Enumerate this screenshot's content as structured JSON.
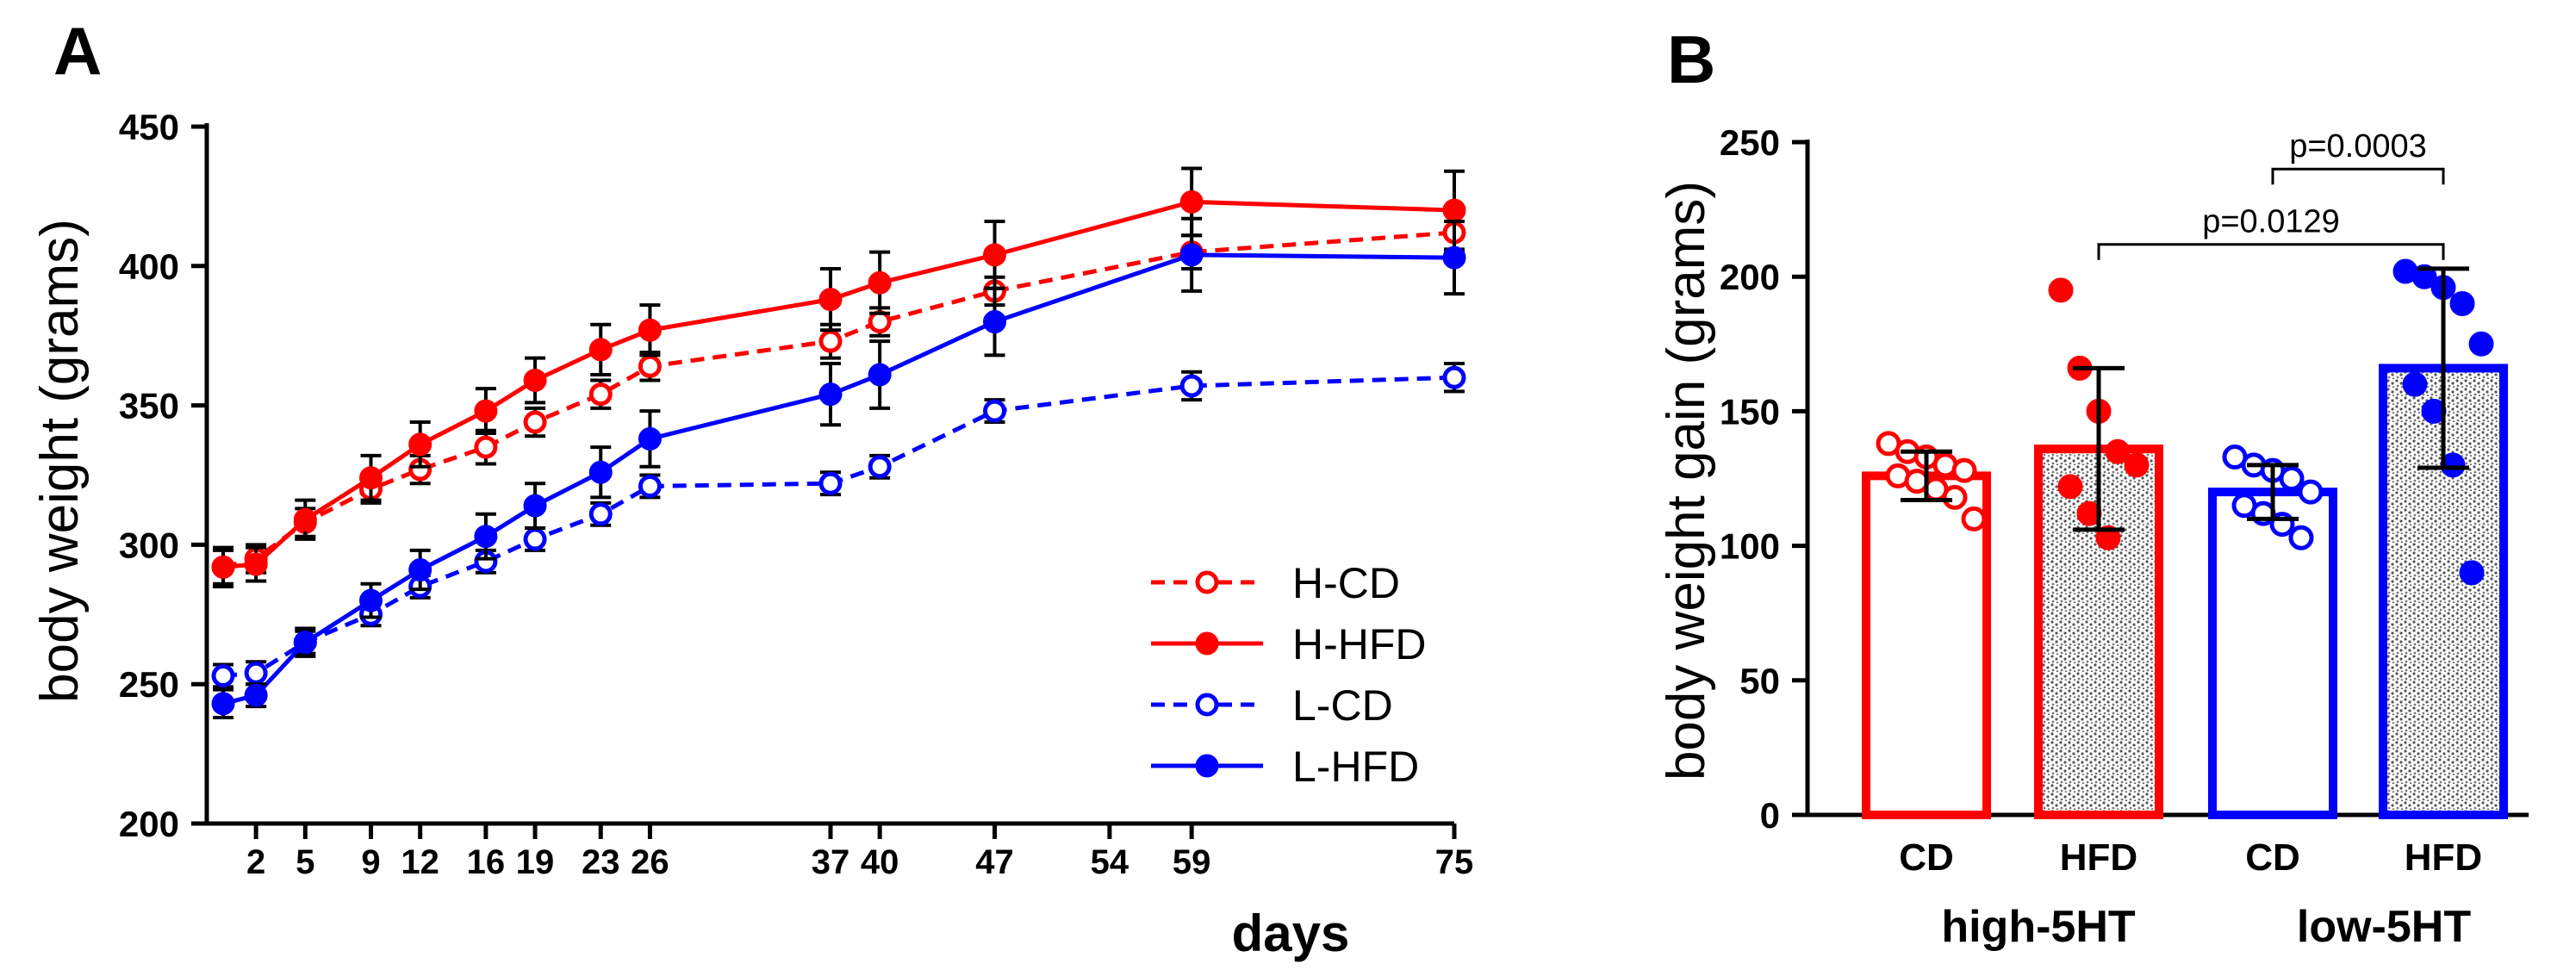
{
  "chart_data": [
    {
      "panel": "A",
      "type": "line",
      "panel_label": "A",
      "xlabel": "days",
      "ylabel": "body weight (grams)",
      "xlim": [
        -1,
        75
      ],
      "ylim": [
        200,
        450
      ],
      "xticks": [
        2,
        5,
        9,
        12,
        16,
        19,
        23,
        26,
        37,
        40,
        47,
        54,
        59,
        75
      ],
      "yticks": [
        200,
        250,
        300,
        350,
        400,
        450
      ],
      "legend_position": "bottom-right",
      "series": [
        {
          "name": "H-CD",
          "color": "#ff0000",
          "dashed": true,
          "filled": false,
          "x": [
            0,
            2,
            5,
            9,
            12,
            16,
            19,
            23,
            26,
            37,
            40,
            47,
            59,
            75
          ],
          "y": [
            292,
            295,
            308,
            320,
            327,
            335,
            344,
            354,
            364,
            373,
            380,
            391,
            405,
            412
          ],
          "err": [
            6,
            5,
            5,
            5,
            5,
            6,
            5,
            5,
            5,
            6,
            5,
            5,
            6,
            7
          ]
        },
        {
          "name": "H-HFD",
          "color": "#ff0000",
          "dashed": false,
          "filled": true,
          "x": [
            0,
            2,
            5,
            9,
            12,
            16,
            19,
            23,
            26,
            37,
            40,
            47,
            59,
            75
          ],
          "y": [
            292,
            293,
            309,
            324,
            336,
            348,
            359,
            370,
            377,
            388,
            394,
            404,
            423,
            420
          ],
          "err": [
            7,
            6,
            7,
            8,
            8,
            8,
            8,
            9,
            9,
            11,
            11,
            12,
            12,
            14
          ]
        },
        {
          "name": "L-CD",
          "color": "#0000ff",
          "dashed": true,
          "filled": false,
          "x": [
            0,
            2,
            5,
            9,
            12,
            16,
            19,
            23,
            26,
            37,
            40,
            47,
            59,
            75
          ],
          "y": [
            253,
            254,
            265,
            275,
            285,
            294,
            302,
            311,
            321,
            322,
            328,
            348,
            357,
            360
          ],
          "err": [
            4,
            4,
            4,
            4,
            4,
            4,
            4,
            4,
            4,
            4,
            4,
            4,
            5,
            5
          ]
        },
        {
          "name": "L-HFD",
          "color": "#0000ff",
          "dashed": false,
          "filled": true,
          "x": [
            0,
            2,
            5,
            9,
            12,
            16,
            19,
            23,
            26,
            37,
            40,
            47,
            59,
            75
          ],
          "y": [
            243,
            246,
            265,
            280,
            291,
            303,
            314,
            326,
            338,
            354,
            361,
            380,
            404,
            403
          ],
          "err": [
            5,
            4,
            5,
            6,
            7,
            8,
            8,
            9,
            10,
            11,
            12,
            12,
            13,
            13
          ]
        }
      ]
    },
    {
      "panel": "B",
      "type": "bar",
      "panel_label": "B",
      "ylabel": "body weight gain (grams)",
      "ylim": [
        0,
        250
      ],
      "yticks": [
        0,
        50,
        100,
        150,
        200,
        250
      ],
      "categories": [
        "CD",
        "HFD",
        "CD",
        "HFD"
      ],
      "groups": [
        "high-5HT",
        "low-5HT"
      ],
      "bars": [
        {
          "category": "CD",
          "group": "high-5HT",
          "color": "#ff0000",
          "patterned": false,
          "filled_points": false,
          "mean": 126,
          "sd": 9,
          "points": [
            138,
            135,
            133,
            130,
            128,
            126,
            124,
            121,
            118,
            110
          ]
        },
        {
          "category": "HFD",
          "group": "high-5HT",
          "color": "#ff0000",
          "patterned": true,
          "filled_points": true,
          "mean": 136,
          "sd": 30,
          "points": [
            195,
            166,
            150,
            135,
            130,
            122,
            112,
            103
          ]
        },
        {
          "category": "CD",
          "group": "low-5HT",
          "color": "#0000ff",
          "patterned": false,
          "filled_points": false,
          "mean": 120,
          "sd": 10,
          "points": [
            133,
            130,
            128,
            125,
            120,
            115,
            112,
            108,
            103
          ]
        },
        {
          "category": "HFD",
          "group": "low-5HT",
          "color": "#0000ff",
          "patterned": true,
          "filled_points": true,
          "mean": 166,
          "sd": 37,
          "points": [
            202,
            200,
            196,
            190,
            175,
            160,
            150,
            130,
            90
          ]
        }
      ],
      "annotations": [
        {
          "text": "p=0.0129",
          "from_bar": 1,
          "to_bar": 3,
          "y": 212
        },
        {
          "text": "p=0.0003",
          "from_bar": 2,
          "to_bar": 3,
          "y": 240
        }
      ]
    }
  ]
}
